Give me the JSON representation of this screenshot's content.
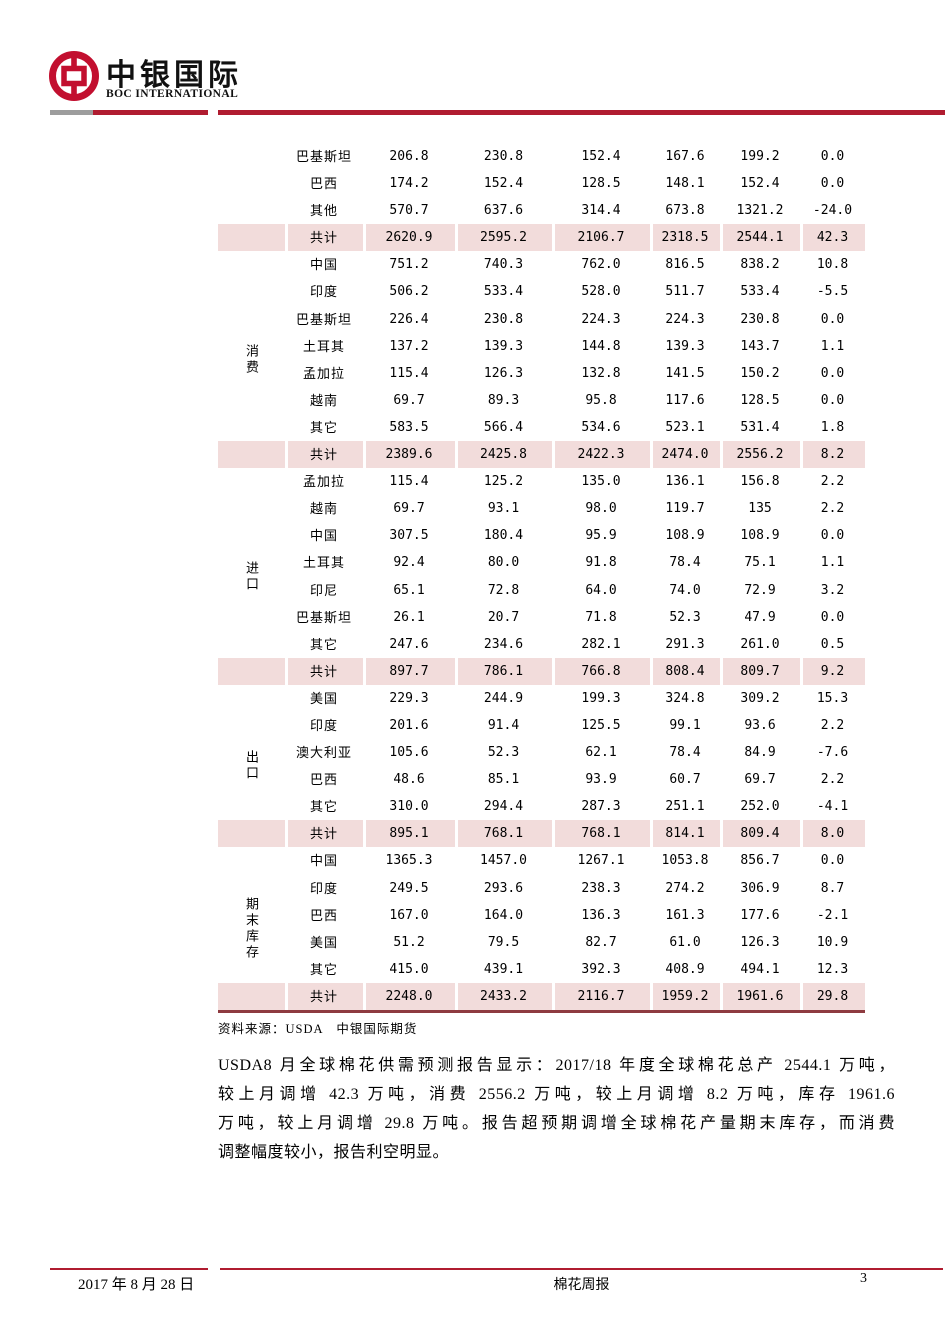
{
  "colors": {
    "brand_red": "#c20f2f",
    "rule_red": "#b01c30",
    "rule_gray": "#9d9d9d",
    "table_bottom_border": "#8e3b40",
    "highlight_pink": "#f2dcdb"
  },
  "header": {
    "logo_cn": "中银国际",
    "logo_en": "BOC INTERNATIONAL"
  },
  "table": {
    "sections": [
      {
        "label": "",
        "rows": [
          {
            "name": "巴基斯坦",
            "values": [
              "206.8",
              "230.8",
              "152.4",
              "167.6",
              "199.2",
              "0.0"
            ],
            "highlight": false
          },
          {
            "name": "巴西",
            "values": [
              "174.2",
              "152.4",
              "128.5",
              "148.1",
              "152.4",
              "0.0"
            ],
            "highlight": false
          },
          {
            "name": "其他",
            "values": [
              "570.7",
              "637.6",
              "314.4",
              "673.8",
              "1321.2",
              "-24.0"
            ],
            "highlight": false
          },
          {
            "name": "共计",
            "values": [
              "2620.9",
              "2595.2",
              "2106.7",
              "2318.5",
              "2544.1",
              "42.3"
            ],
            "highlight": true
          }
        ]
      },
      {
        "label": "消费",
        "rows": [
          {
            "name": "中国",
            "values": [
              "751.2",
              "740.3",
              "762.0",
              "816.5",
              "838.2",
              "10.8"
            ],
            "highlight": false
          },
          {
            "name": "印度",
            "values": [
              "506.2",
              "533.4",
              "528.0",
              "511.7",
              "533.4",
              "-5.5"
            ],
            "highlight": false
          },
          {
            "name": "巴基斯坦",
            "values": [
              "226.4",
              "230.8",
              "224.3",
              "224.3",
              "230.8",
              "0.0"
            ],
            "highlight": false
          },
          {
            "name": "土耳其",
            "values": [
              "137.2",
              "139.3",
              "144.8",
              "139.3",
              "143.7",
              "1.1"
            ],
            "highlight": false
          },
          {
            "name": "孟加拉",
            "values": [
              "115.4",
              "126.3",
              "132.8",
              "141.5",
              "150.2",
              "0.0"
            ],
            "highlight": false
          },
          {
            "name": "越南",
            "values": [
              "69.7",
              "89.3",
              "95.8",
              "117.6",
              "128.5",
              "0.0"
            ],
            "highlight": false
          },
          {
            "name": "其它",
            "values": [
              "583.5",
              "566.4",
              "534.6",
              "523.1",
              "531.4",
              "1.8"
            ],
            "highlight": false
          },
          {
            "name": "共计",
            "values": [
              "2389.6",
              "2425.8",
              "2422.3",
              "2474.0",
              "2556.2",
              "8.2"
            ],
            "highlight": true
          }
        ]
      },
      {
        "label": "进口",
        "rows": [
          {
            "name": "孟加拉",
            "values": [
              "115.4",
              "125.2",
              "135.0",
              "136.1",
              "156.8",
              "2.2"
            ],
            "highlight": false
          },
          {
            "name": "越南",
            "values": [
              "69.7",
              "93.1",
              "98.0",
              "119.7",
              "135",
              "2.2"
            ],
            "highlight": false
          },
          {
            "name": "中国",
            "values": [
              "307.5",
              "180.4",
              "95.9",
              "108.9",
              "108.9",
              "0.0"
            ],
            "highlight": false
          },
          {
            "name": "土耳其",
            "values": [
              "92.4",
              "80.0",
              "91.8",
              "78.4",
              "75.1",
              "1.1"
            ],
            "highlight": false
          },
          {
            "name": "印尼",
            "values": [
              "65.1",
              "72.8",
              "64.0",
              "74.0",
              "72.9",
              "3.2"
            ],
            "highlight": false
          },
          {
            "name": "巴基斯坦",
            "values": [
              "26.1",
              "20.7",
              "71.8",
              "52.3",
              "47.9",
              "0.0"
            ],
            "highlight": false
          },
          {
            "name": "其它",
            "values": [
              "247.6",
              "234.6",
              "282.1",
              "291.3",
              "261.0",
              "0.5"
            ],
            "highlight": false
          },
          {
            "name": "共计",
            "values": [
              "897.7",
              "786.1",
              "766.8",
              "808.4",
              "809.7",
              "9.2"
            ],
            "highlight": true
          }
        ]
      },
      {
        "label": "出口",
        "rows": [
          {
            "name": "美国",
            "values": [
              "229.3",
              "244.9",
              "199.3",
              "324.8",
              "309.2",
              "15.3"
            ],
            "highlight": false
          },
          {
            "name": "印度",
            "values": [
              "201.6",
              "91.4",
              "125.5",
              "99.1",
              "93.6",
              "2.2"
            ],
            "highlight": false
          },
          {
            "name": "澳大利亚",
            "values": [
              "105.6",
              "52.3",
              "62.1",
              "78.4",
              "84.9",
              "-7.6"
            ],
            "highlight": false
          },
          {
            "name": "巴西",
            "values": [
              "48.6",
              "85.1",
              "93.9",
              "60.7",
              "69.7",
              "2.2"
            ],
            "highlight": false
          },
          {
            "name": "其它",
            "values": [
              "310.0",
              "294.4",
              "287.3",
              "251.1",
              "252.0",
              "-4.1"
            ],
            "highlight": false
          },
          {
            "name": "共计",
            "values": [
              "895.1",
              "768.1",
              "768.1",
              "814.1",
              "809.4",
              "8.0"
            ],
            "highlight": true
          }
        ]
      },
      {
        "label": "期末库存",
        "rows": [
          {
            "name": "中国",
            "values": [
              "1365.3",
              "1457.0",
              "1267.1",
              "1053.8",
              "856.7",
              "0.0"
            ],
            "highlight": false
          },
          {
            "name": "印度",
            "values": [
              "249.5",
              "293.6",
              "238.3",
              "274.2",
              "306.9",
              "8.7"
            ],
            "highlight": false
          },
          {
            "name": "巴西",
            "values": [
              "167.0",
              "164.0",
              "136.3",
              "161.3",
              "177.6",
              "-2.1"
            ],
            "highlight": false
          },
          {
            "name": "美国",
            "values": [
              "51.2",
              "79.5",
              "82.7",
              "61.0",
              "126.3",
              "10.9"
            ],
            "highlight": false
          },
          {
            "name": "其它",
            "values": [
              "415.0",
              "439.1",
              "392.3",
              "408.9",
              "494.1",
              "12.3"
            ],
            "highlight": false
          },
          {
            "name": "共计",
            "values": [
              "2248.0",
              "2433.2",
              "2116.7",
              "1959.2",
              "1961.6",
              "29.8"
            ],
            "highlight": true
          }
        ]
      }
    ]
  },
  "source_note": "资料来源：USDA　中银国际期货",
  "body_paragraph": {
    "lines": [
      "USDA8 月全球棉花供需预测报告显示：2017/18 年度全球棉花总产 2544.1 万吨，",
      "较上月调增 42.3 万吨，消费 2556.2 万吨，较上月调增 8.2 万吨，库存 1961.6",
      "万吨，较上月调增 29.8 万吨。报告超预期调增全球棉花产量期末库存，而消费",
      "调整幅度较小，报告利空明显。"
    ]
  },
  "footer": {
    "date": "2017 年 8 月 28 日",
    "title": "棉花周报",
    "page": "3"
  }
}
